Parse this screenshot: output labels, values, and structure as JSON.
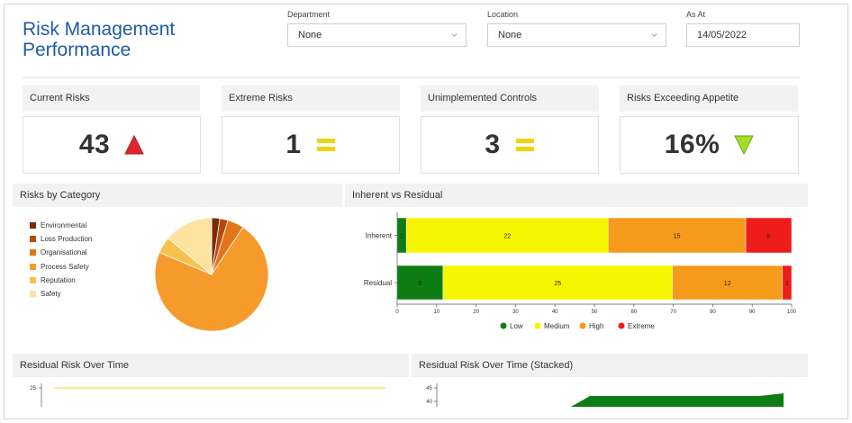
{
  "header": {
    "title_line1": "Risk Management",
    "title_line2": "Performance"
  },
  "filters": {
    "department": {
      "label": "Department",
      "value": "None"
    },
    "location": {
      "label": "Location",
      "value": "None"
    },
    "as_at": {
      "label": "As At",
      "value": "14/05/2022"
    }
  },
  "kpis": [
    {
      "label": "Current Risks",
      "value": "43",
      "indicator": "up-triangle-icon",
      "color": "#e0242f"
    },
    {
      "label": "Extreme Risks",
      "value": "1",
      "indicator": "equals-icon",
      "color": "#f2d20b"
    },
    {
      "label": "Unimplemented Controls",
      "value": "3",
      "indicator": "equals-icon",
      "color": "#f2d20b"
    },
    {
      "label": "Risks Exceeding Appetite",
      "value": "16%",
      "indicator": "down-triangle-icon",
      "color": "#a8dc2a"
    }
  ],
  "panels": {
    "risks_by_category": "Risks by Category",
    "inherent_vs_residual": "Inherent vs Residual",
    "residual_over_time": "Residual Risk Over Time",
    "residual_over_time_stacked": "Residual Risk Over Time (Stacked)"
  },
  "chart_data": [
    {
      "type": "pie",
      "categories": [
        "Environmental",
        "Loss Production",
        "Organisational",
        "Process Safety",
        "Reputation",
        "Safety"
      ],
      "values": [
        1,
        1,
        2,
        31,
        2,
        6
      ],
      "colors": [
        "#7b2a0c",
        "#b84a0d",
        "#e3751a",
        "#f79a2c",
        "#f6c14e",
        "#fde3a0"
      ],
      "legend": "left"
    },
    {
      "type": "bar",
      "orientation": "horizontal",
      "stacked": true,
      "categories": [
        "Inherent",
        "Residual"
      ],
      "series": [
        {
          "name": "Low",
          "values": [
            1,
            5
          ],
          "color": "#0e7d14"
        },
        {
          "name": "Medium",
          "values": [
            22,
            25
          ],
          "color": "#f6f600"
        },
        {
          "name": "High",
          "values": [
            15,
            12
          ],
          "color": "#f59a1b"
        },
        {
          "name": "Extreme",
          "values": [
            5,
            1
          ],
          "color": "#ef1c1c"
        }
      ],
      "segment_labels": {
        "Inherent": [
          "1",
          "22",
          "15",
          "5"
        ],
        "Residual": [
          "5",
          "25",
          "12",
          "1"
        ]
      },
      "xticks": [
        "0",
        "10",
        "20",
        "30",
        "40",
        "50",
        "60",
        "70",
        "80",
        "90",
        "100"
      ],
      "xlim": [
        0,
        100
      ],
      "legend": "bottom"
    },
    {
      "type": "line",
      "yticks": [
        "25"
      ],
      "series": [
        {
          "values": [
            25,
            25
          ],
          "color": "#f0dc14"
        }
      ]
    },
    {
      "type": "area",
      "yticks": [
        "45",
        "40"
      ],
      "series": [
        {
          "color": "#0e7d14"
        }
      ]
    }
  ]
}
